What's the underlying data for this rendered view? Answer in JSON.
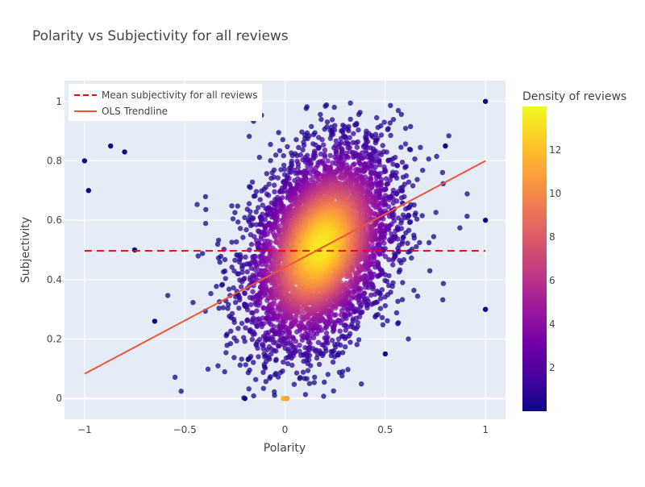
{
  "chart_data": {
    "type": "scatter",
    "title": "Polarity vs Subjectivity for all reviews",
    "xlabel": "Polarity",
    "ylabel": "Subjectivity",
    "xlim": [
      -1.1,
      1.1
    ],
    "ylim": [
      -0.07,
      1.07
    ],
    "grid": true,
    "x_ticks": [
      {
        "value": -1,
        "label": "−1"
      },
      {
        "value": -0.5,
        "label": "−0.5"
      },
      {
        "value": 0,
        "label": "0"
      },
      {
        "value": 0.5,
        "label": "0.5"
      },
      {
        "value": 1,
        "label": "1"
      }
    ],
    "y_ticks": [
      {
        "value": 0,
        "label": "0"
      },
      {
        "value": 0.2,
        "label": "0.2"
      },
      {
        "value": 0.4,
        "label": "0.4"
      },
      {
        "value": 0.6,
        "label": "0.6"
      },
      {
        "value": 0.8,
        "label": "0.8"
      },
      {
        "value": 1,
        "label": "1"
      }
    ],
    "legend": {
      "placement": "top-left",
      "entries": [
        {
          "name": "Mean subjectivity for all reviews",
          "color": "#ff0000",
          "dash": "dash"
        },
        {
          "name": "OLS Trendline",
          "color": "#ef553b",
          "dash": "solid"
        }
      ]
    },
    "colorbar": {
      "title": "Density of reviews",
      "min": 0,
      "max": 14,
      "ticks": [
        2,
        4,
        6,
        8,
        10,
        12
      ],
      "colorscale": [
        "#0d0887",
        "#46039f",
        "#7201a8",
        "#9c179e",
        "#bd3786",
        "#d8576b",
        "#ed7953",
        "#fb9f3a",
        "#fdca26",
        "#f0f921"
      ]
    },
    "mean_subjectivity": {
      "x": [
        -1,
        1
      ],
      "y": [
        0.497,
        0.497
      ]
    },
    "trendline": {
      "x": [
        -1,
        1
      ],
      "y": [
        0.083,
        0.8
      ]
    },
    "distribution": {
      "center": [
        0.18,
        0.51
      ],
      "spread": [
        0.17,
        0.16
      ],
      "correlation": 0.35,
      "peak_density": 13.5
    },
    "notable_points": [
      {
        "x": -1,
        "y": 0.8
      },
      {
        "x": -0.98,
        "y": 0.7
      },
      {
        "x": -0.75,
        "y": 0.5
      },
      {
        "x": -0.65,
        "y": 0.26
      },
      {
        "x": 1,
        "y": 1
      },
      {
        "x": 1,
        "y": 0.3
      },
      {
        "x": 1,
        "y": 0.6
      },
      {
        "x": 0.5,
        "y": 0.15
      },
      {
        "x": -0.2,
        "y": 0
      },
      {
        "x": 0.8,
        "y": 0.85
      },
      {
        "x": -0.87,
        "y": 0.85
      },
      {
        "x": -0.8,
        "y": 0.83
      }
    ],
    "zero_points": [
      {
        "x": -0.01,
        "y": 0,
        "density": 12
      },
      {
        "x": 0,
        "y": 0,
        "density": 11.5
      },
      {
        "x": 0.01,
        "y": 0,
        "density": 11
      }
    ]
  }
}
